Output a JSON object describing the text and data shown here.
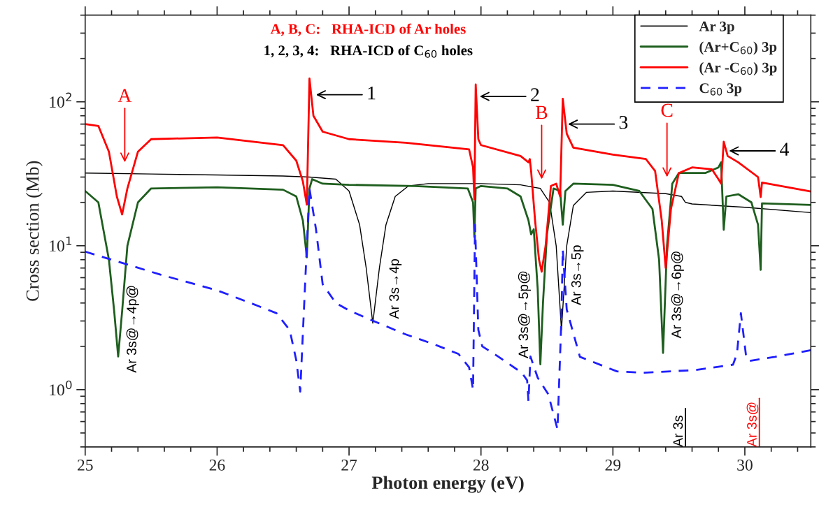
{
  "chart_data": {
    "type": "line",
    "xlabel": "Photon energy (eV)",
    "ylabel": "Cross section (Mb)",
    "xlim": [
      25,
      30.5
    ],
    "xticks": [
      25,
      26,
      27,
      28,
      29,
      30
    ],
    "ylim": [
      0.4,
      400
    ],
    "yticks": [
      {
        "value": 1,
        "label": "10$^{0}$"
      },
      {
        "value": 10,
        "label": "10$^{1}$"
      },
      {
        "value": 100,
        "label": "10$^{2}$"
      }
    ],
    "log": "y",
    "grid": false,
    "legend": "top right",
    "series": [
      {
        "name": "Ar 3p",
        "color": "#000000",
        "line_style": "solid",
        "x": [
          25,
          25.5,
          26,
          26.5,
          26.7,
          26.9,
          27.0,
          27.08,
          27.13,
          27.18,
          27.23,
          27.28,
          27.35,
          27.45,
          27.6,
          28.0,
          28.3,
          28.45,
          28.52,
          28.57,
          28.61,
          28.65,
          28.7,
          28.8,
          29.0,
          29.4,
          29.52,
          29.55,
          29.6,
          30.0,
          30.5
        ],
        "values": [
          32,
          31.5,
          31,
          30.5,
          30,
          29,
          24,
          14,
          7,
          2.9,
          7,
          14,
          22,
          26,
          27,
          27,
          26.5,
          25,
          20,
          10,
          2.6,
          10,
          19,
          23.5,
          24,
          23,
          22,
          20,
          19.5,
          18.5,
          17
        ]
      },
      {
        "name": "(Ar+C$_{60}$) 3p",
        "color": "#1e5e1e",
        "line_style": "solid",
        "x": [
          25,
          25.1,
          25.18,
          25.22,
          25.25,
          25.28,
          25.32,
          25.4,
          25.5,
          26,
          26.5,
          26.6,
          26.65,
          26.68,
          26.7,
          26.72,
          26.8,
          27,
          27.5,
          27.9,
          27.94,
          27.95,
          27.96,
          28.0,
          28.2,
          28.3,
          28.36,
          28.38,
          28.4,
          28.43,
          28.45,
          28.47,
          28.5,
          28.55,
          28.6,
          28.62,
          28.64,
          28.7,
          29.0,
          29.2,
          29.3,
          29.35,
          29.38,
          29.41,
          29.45,
          29.5,
          29.7,
          29.8,
          29.82,
          29.84,
          29.86,
          29.95,
          30.05,
          30.1,
          30.12,
          30.13,
          30.5
        ],
        "values": [
          24,
          20,
          8,
          3.5,
          1.7,
          3.5,
          10,
          20,
          25,
          25.5,
          24.5,
          22,
          15,
          8.3,
          25,
          29,
          27,
          26.5,
          26,
          25,
          20,
          11.5,
          25,
          26,
          25,
          22,
          15,
          12,
          13,
          5,
          1.5,
          4,
          12,
          25,
          24,
          14,
          24,
          27,
          26.5,
          24,
          18,
          8,
          1.8,
          10,
          27,
          32,
          32,
          35,
          38,
          12.9,
          22,
          22.8,
          20,
          14,
          6.8,
          19.7,
          19.2
        ]
      },
      {
        "name": "(Ar -C$_{60}$) 3p",
        "color": "#ff0000",
        "line_style": "solid",
        "x": [
          25,
          25.1,
          25.18,
          25.24,
          25.28,
          25.32,
          25.4,
          25.5,
          26,
          26.5,
          26.6,
          26.65,
          26.68,
          26.7,
          26.73,
          26.8,
          27,
          27.43,
          27.91,
          27.94,
          27.95,
          27.96,
          27.98,
          28.0,
          28.3,
          28.36,
          28.37,
          28.38,
          28.41,
          28.44,
          28.46,
          28.49,
          28.53,
          28.57,
          28.6,
          28.62,
          28.65,
          28.7,
          29.0,
          29.25,
          29.32,
          29.37,
          29.4,
          29.44,
          29.5,
          29.6,
          29.75,
          29.8,
          29.82,
          29.84,
          29.87,
          29.95,
          30.1,
          30.12,
          30.13,
          30.5
        ],
        "values": [
          70,
          68,
          45,
          22,
          16.5,
          25,
          45,
          55,
          56.5,
          50,
          39,
          28,
          19.3,
          145,
          80,
          62,
          55,
          52,
          46.7,
          35,
          21,
          132,
          55,
          50,
          42,
          38,
          40,
          33,
          15,
          8,
          6.6,
          10,
          26,
          27,
          22,
          105,
          60,
          48,
          43,
          40,
          33,
          15,
          7,
          18,
          32,
          35,
          34,
          29,
          27,
          52.8,
          42,
          38,
          30,
          21.8,
          27.5,
          23.8
        ]
      },
      {
        "name": "C$_{60}$ 3p",
        "color": "#1f1fff",
        "line_style": "dashed",
        "x": [
          25,
          25.57,
          26.0,
          26.3,
          26.45,
          26.55,
          26.6,
          26.63,
          26.65,
          26.67,
          26.7,
          26.75,
          26.8,
          26.9,
          27.0,
          27.2,
          27.43,
          27.63,
          27.83,
          27.91,
          27.94,
          27.945,
          27.955,
          27.98,
          28.01,
          28.13,
          28.31,
          28.35,
          28.36,
          28.365,
          28.375,
          28.43,
          28.51,
          28.58,
          28.61,
          28.62,
          28.65,
          28.75,
          29.03,
          29.23,
          29.63,
          29.91,
          29.94,
          29.97,
          30.01,
          30.03,
          30.23,
          30.5
        ],
        "values": [
          9.1,
          6.3,
          4.9,
          3.85,
          3.4,
          2.6,
          1.6,
          0.97,
          null,
          null,
          25,
          12.9,
          5.4,
          4.0,
          3.55,
          2.96,
          2.42,
          2.09,
          1.77,
          1.43,
          1.0,
          null,
          14,
          2.6,
          2.0,
          1.7,
          1.31,
          1.16,
          0.83,
          null,
          1.7,
          1.21,
          0.93,
          0.53,
          3.2,
          9.4,
          3.6,
          1.69,
          1.34,
          1.31,
          1.37,
          1.49,
          1.77,
          3.4,
          1.69,
          1.58,
          1.69,
          1.88
        ]
      }
    ],
    "annotations": [
      "A, B, C:   RHA-ICD of Ar holes",
      "1, 2, 3, 4:   RHA-ICD of C$_{60}$ holes",
      "A",
      "B",
      "C",
      "1",
      "2",
      "3",
      "4",
      "Ar 3s@→4p@",
      "Ar 3s→4p",
      "Ar 3s@→5p@",
      "Ar 3s→5p",
      "Ar 3s@→6p@",
      "Ar 3s",
      "Ar 3s@"
    ]
  }
}
